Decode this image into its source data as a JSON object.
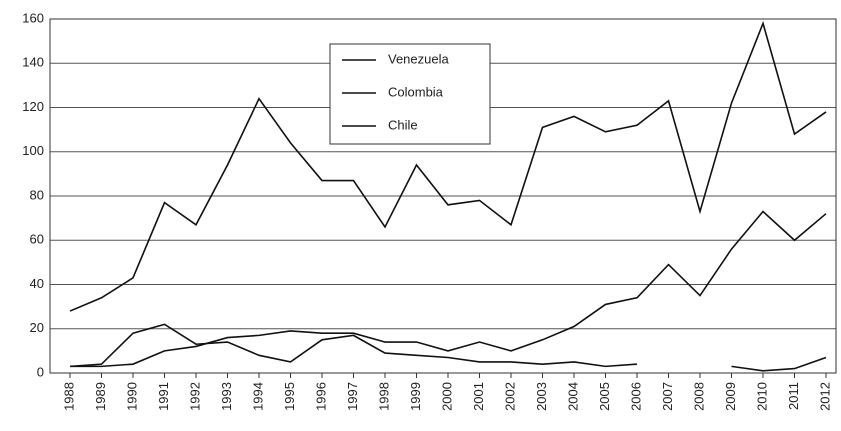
{
  "chart_data": {
    "type": "line",
    "categories": [
      "1988",
      "1989",
      "1990",
      "1991",
      "1992",
      "1993",
      "1994",
      "1995",
      "1996",
      "1997",
      "1998",
      "1999",
      "2000",
      "2001",
      "2002",
      "2003",
      "2004",
      "2005",
      "2006",
      "2007",
      "2008",
      "2009",
      "2010",
      "2011",
      "2012"
    ],
    "series": [
      {
        "name": "Venezuela",
        "color": "#111111",
        "values": [
          3,
          4,
          18,
          22,
          13,
          14,
          8,
          5,
          15,
          17,
          9,
          8,
          7,
          5,
          5,
          4,
          5,
          3,
          4,
          null,
          null,
          3,
          1,
          2,
          7
        ]
      },
      {
        "name": "Colombia",
        "color": "#111111",
        "values": [
          28,
          34,
          43,
          77,
          67,
          94,
          124,
          104,
          87,
          87,
          66,
          94,
          76,
          78,
          67,
          111,
          116,
          109,
          112,
          123,
          73,
          122,
          158,
          108,
          118
        ]
      },
      {
        "name": "Chile",
        "color": "#111111",
        "values": [
          3,
          3,
          4,
          10,
          12,
          16,
          17,
          19,
          18,
          18,
          14,
          14,
          10,
          14,
          10,
          15,
          21,
          31,
          34,
          49,
          35,
          56,
          73,
          60,
          72
        ]
      }
    ],
    "ylim": [
      0,
      160
    ],
    "yticks": [
      0,
      20,
      40,
      60,
      80,
      100,
      120,
      140,
      160
    ],
    "grid": true
  }
}
